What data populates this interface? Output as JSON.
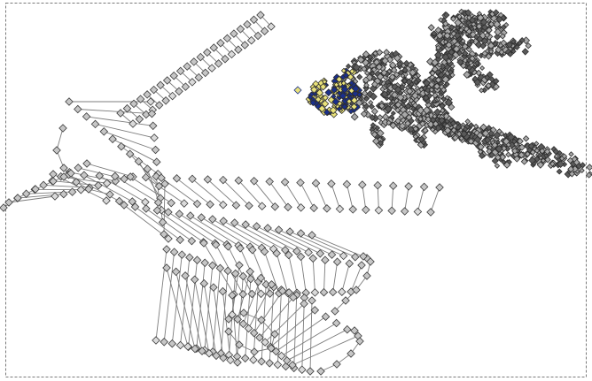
{
  "canvas": {
    "background": "#ffffff",
    "frame_color": "#7a7a7a",
    "line_color": "#7c7c7c",
    "vertex_fill": "#c6c6c6",
    "vertex_fill_light": "#dadada",
    "vertex_stroke": "#3c3c3c",
    "cluster_fill": "#a8a8a8",
    "cluster_dark": "#5a5a5a",
    "highlight_blue": "#1a2f8c",
    "highlight_yellow": "#e9e27a",
    "icon": "diamond-vertex-icon"
  }
}
